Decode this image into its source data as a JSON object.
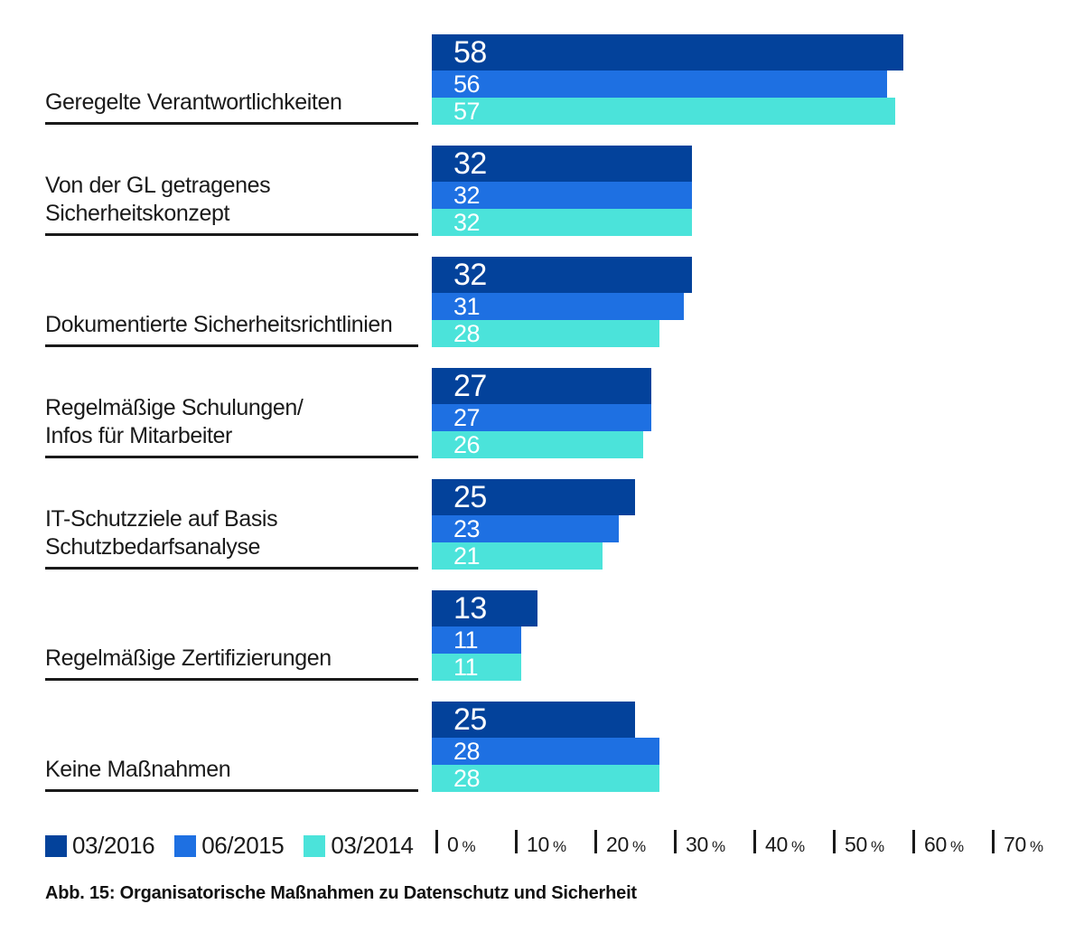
{
  "chart_data": {
    "type": "bar",
    "orientation": "horizontal",
    "caption": "Abb. 15: Organisatorische Maßnahmen zu Datenschutz und Sicherheit",
    "unit": "%",
    "xlim": [
      0,
      70
    ],
    "x_ticks": [
      "0",
      "10",
      "20",
      "30",
      "40",
      "50",
      "60",
      "70"
    ],
    "tick_suffix": "%",
    "legend_position": "bottom-left",
    "grid": false,
    "categories": [
      "Geregelte Verantwortlichkeiten",
      "Von der GL getragenes\nSicherheitskonzept",
      "Dokumentierte Sicherheitsrichtlinien",
      "Regelmäßige Schulungen/\nInfos für Mitarbeiter",
      "IT-Schutzziele auf Basis\nSchutzbedarfsanalyse",
      "Regelmäßige Zertifizierungen",
      "Keine Maßnahmen"
    ],
    "series": [
      {
        "name": "03/2016",
        "color": "#03429B",
        "values": [
          58,
          32,
          32,
          27,
          25,
          13,
          25
        ]
      },
      {
        "name": "06/2015",
        "color": "#1E70E2",
        "values": [
          56,
          32,
          31,
          27,
          23,
          11,
          28
        ]
      },
      {
        "name": "03/2014",
        "color": "#4BE3DA",
        "values": [
          57,
          32,
          28,
          26,
          21,
          11,
          28
        ]
      }
    ]
  }
}
